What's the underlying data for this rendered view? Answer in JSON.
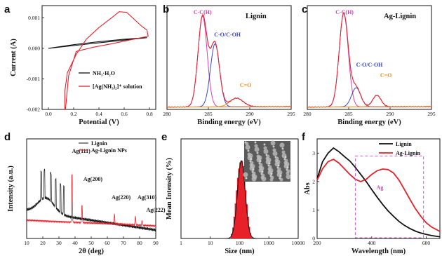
{
  "colors": {
    "black": "#111111",
    "red": "#e8202a",
    "magenta": "#d63fb0",
    "blue": "#3a47c9",
    "orange": "#f0901e",
    "pink": "#f06aa8",
    "dashbox": "#d05ad0"
  },
  "chart_data": [
    {
      "panel": "a",
      "type": "line",
      "xlabel": "Potential (V)",
      "ylabel": "Current (A)",
      "xlim": [
        -0.05,
        0.85
      ],
      "ylim": [
        -0.002,
        0.0014
      ],
      "xticks": [
        "0.0",
        "0.2",
        "0.4",
        "0.6",
        "0.8"
      ],
      "yticks": [
        "-0.002",
        "-0.001",
        "0.000",
        "0.001"
      ],
      "series": [
        {
          "name": "NH₃·H₂O",
          "color": "black",
          "x": [
            0.0,
            0.2,
            0.4,
            0.6,
            0.78,
            0.6,
            0.4,
            0.2,
            0.0
          ],
          "y": [
            0.0,
            9e-05,
            0.00018,
            0.00027,
            0.00035,
            0.0003,
            0.00022,
            0.00012,
            0.0
          ]
        },
        {
          "name": "[Ag(NH₃)₂]⁺ solution",
          "color": "red",
          "x": [
            0.13,
            0.13,
            0.15,
            0.22,
            0.3,
            0.4,
            0.5,
            0.56,
            0.62,
            0.68,
            0.74,
            0.78,
            0.79,
            0.76,
            0.65,
            0.5,
            0.35,
            0.22,
            0.16,
            0.135
          ],
          "y": [
            -0.002,
            -0.0014,
            -0.0008,
            -0.0002,
            0.0003,
            0.00068,
            0.001,
            0.0012,
            0.00118,
            0.00095,
            0.00072,
            0.0006,
            0.0004,
            0.00037,
            0.00028,
            0.00015,
            3e-05,
            -0.0001,
            -0.0009,
            -0.002
          ]
        }
      ],
      "legend": [
        "NH₃·H₂O",
        "[Ag(NH₃)₂]⁺ solution"
      ],
      "legend_position": "bottom-right"
    },
    {
      "panel": "b",
      "type": "line",
      "title": "Lignin",
      "xlabel": "Binding energy (eV)",
      "xlim": [
        280,
        295
      ],
      "xticks": [
        "280",
        "285",
        "290",
        "295"
      ],
      "annotations": [
        "C-C(H)",
        "C-O/C-OH",
        "C=O"
      ],
      "series": [
        {
          "name": "C-C(H)",
          "color": "magenta",
          "center": 284.3,
          "width": 0.55,
          "amp": 0.95
        },
        {
          "name": "C-O/C-OH",
          "color": "blue",
          "center": 285.8,
          "width": 0.55,
          "amp": 0.66
        },
        {
          "name": "C=O",
          "color": "orange",
          "center": 288.4,
          "width": 0.8,
          "amp": 0.09
        }
      ]
    },
    {
      "panel": "c",
      "type": "line",
      "title": "Ag-Lignin",
      "xlabel": "Binding energy (eV)",
      "xlim": [
        280,
        295
      ],
      "xticks": [
        "280",
        "285",
        "290",
        "295"
      ],
      "annotations": [
        "C-C(H)",
        "C-O/C-OH",
        "C=O"
      ],
      "series": [
        {
          "name": "C-C(H)",
          "color": "magenta",
          "center": 284.4,
          "width": 0.55,
          "amp": 0.98
        },
        {
          "name": "C-O/C-OH",
          "color": "blue",
          "center": 285.9,
          "width": 0.55,
          "amp": 0.2
        },
        {
          "name": "C=O",
          "color": "orange",
          "center": 288.4,
          "width": 0.5,
          "amp": 0.12
        }
      ]
    },
    {
      "panel": "d",
      "type": "line",
      "xlabel": "2θ (deg)",
      "ylabel": "Intensity (a.u.)",
      "xlim": [
        10,
        90
      ],
      "xticks": [
        "10",
        "20",
        "30",
        "40",
        "50",
        "60",
        "70",
        "80",
        "90"
      ],
      "legend": [
        "Lignin",
        "Ag-Lignin NPs"
      ],
      "legend_position": "top-right",
      "peaks": [
        {
          "label": "Ag(111)",
          "x": 38.1
        },
        {
          "label": "Ag(200)",
          "x": 44.3
        },
        {
          "label": "Ag(220)",
          "x": 64.4
        },
        {
          "label": "Ag(310)",
          "x": 77.4
        },
        {
          "label": "Ag(222)",
          "x": 81.5
        }
      ]
    },
    {
      "panel": "e",
      "type": "bar",
      "xlabel": "Size (nm)",
      "ylabel": "Mean Intensity (%)",
      "xscale": "log",
      "xlim": [
        1,
        10000
      ],
      "xticks": [
        "1",
        "10",
        "100",
        "1000",
        "10000"
      ],
      "x": [
        55,
        62,
        68,
        75,
        82,
        90,
        98,
        108,
        118,
        130,
        142,
        156,
        172,
        190,
        208,
        228,
        250
      ],
      "values": [
        0.06,
        0.14,
        0.28,
        0.45,
        0.62,
        0.78,
        0.9,
        0.98,
        1.0,
        0.93,
        0.8,
        0.62,
        0.44,
        0.28,
        0.15,
        0.07,
        0.02
      ]
    },
    {
      "panel": "f",
      "type": "line",
      "xlabel": "Wavelength (nm)",
      "ylabel": "Abs",
      "xlim": [
        200,
        650
      ],
      "ylim": [
        0,
        3.5
      ],
      "xticks": [
        "200",
        "400",
        "600"
      ],
      "yticks": [
        "0",
        "1",
        "2",
        "3"
      ],
      "legend": [
        "Lignin",
        "Ag-Lignin"
      ],
      "legend_position": "top-right",
      "annotation": "Ag",
      "series": [
        {
          "name": "Lignin",
          "color": "black",
          "x": [
            200,
            220,
            240,
            260,
            280,
            300,
            320,
            340,
            360,
            380,
            400,
            420,
            440,
            460,
            480,
            500,
            520,
            540,
            560,
            580,
            600,
            620,
            650
          ],
          "y": [
            2.1,
            2.7,
            3.0,
            3.18,
            3.05,
            2.88,
            2.72,
            2.5,
            2.25,
            2.0,
            1.72,
            1.45,
            1.2,
            0.97,
            0.78,
            0.6,
            0.46,
            0.35,
            0.26,
            0.19,
            0.14,
            0.1,
            0.06
          ]
        },
        {
          "name": "Ag-Lignin",
          "color": "red",
          "x": [
            200,
            220,
            240,
            260,
            280,
            300,
            320,
            340,
            360,
            380,
            400,
            420,
            440,
            460,
            480,
            500,
            520,
            540,
            560,
            580,
            600,
            620,
            650
          ],
          "y": [
            2.05,
            2.45,
            2.7,
            2.78,
            2.65,
            2.45,
            2.25,
            2.08,
            2.0,
            2.08,
            2.25,
            2.38,
            2.44,
            2.42,
            2.3,
            2.05,
            1.72,
            1.38,
            1.05,
            0.78,
            0.55,
            0.4,
            0.25
          ]
        }
      ]
    }
  ]
}
